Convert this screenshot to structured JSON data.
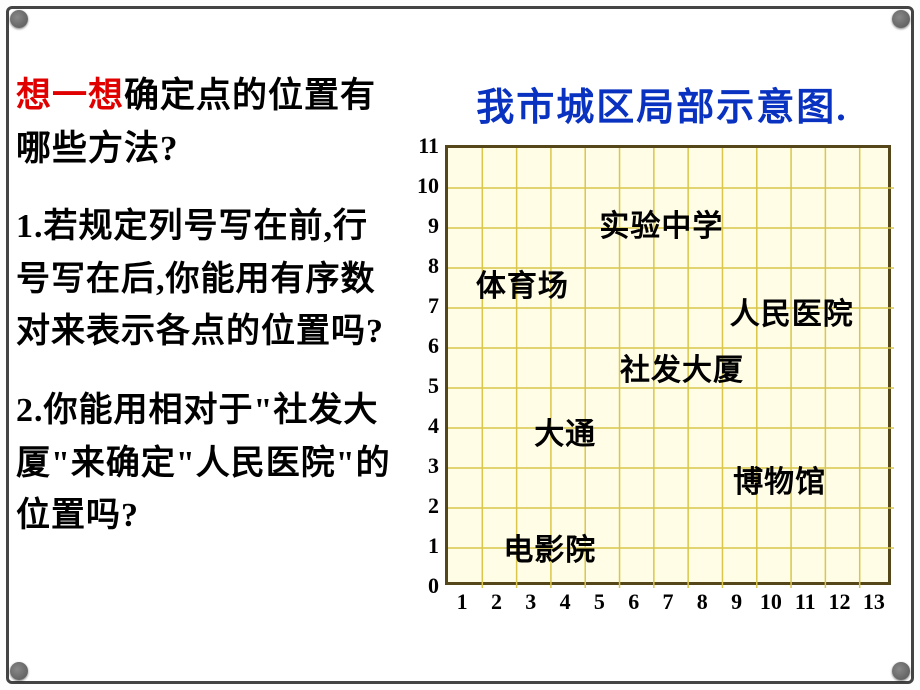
{
  "heading": {
    "highlight": "想一想",
    "rest": "确定点的位置有哪些方法?"
  },
  "question1": "1.若规定列号写在前,行号写在后,你能用有序数对来表示各点的位置吗?",
  "question2": "2.你能用相对于\"社发大厦\"来确定\"人民医院\"的位置吗?",
  "chart": {
    "title": "我市城区局部示意图.",
    "title_color": "#0a32c0",
    "xmax": 13,
    "ymax": 11,
    "grid_color": "#d9c64a",
    "border_color": "#55471a",
    "bg_color": "#fffde6",
    "axis_font_size": 22,
    "marker_font_size": 30,
    "xticks": [
      "1",
      "2",
      "3",
      "4",
      "5",
      "6",
      "7",
      "8",
      "9",
      "10",
      "11",
      "12",
      "13"
    ],
    "yticks": [
      "0",
      "1",
      "2",
      "3",
      "4",
      "5",
      "6",
      "7",
      "8",
      "9",
      "10",
      "11"
    ],
    "markers": [
      {
        "name": "实验中学",
        "x": 5,
        "y": 9.2
      },
      {
        "name": "体育场",
        "x": 1.4,
        "y": 7.7
      },
      {
        "name": "人民医院",
        "x": 8.8,
        "y": 7.0
      },
      {
        "name": "社发大厦",
        "x": 5.6,
        "y": 5.6
      },
      {
        "name": "大通",
        "x": 3.1,
        "y": 4.0
      },
      {
        "name": "博物馆",
        "x": 8.9,
        "y": 2.8
      },
      {
        "name": "电影院",
        "x": 2.2,
        "y": 1.1
      }
    ]
  }
}
